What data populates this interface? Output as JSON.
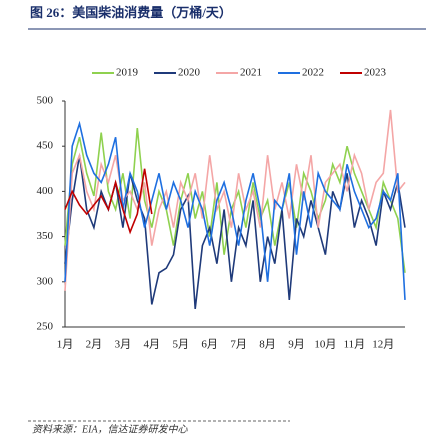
{
  "chart_data": {
    "type": "line",
    "title": "图 26：美国柴油消费量（万桶/天）",
    "source": "资料来源：EIA，信达证券研发中心",
    "categories": [
      "1月",
      null,
      null,
      null,
      "2月",
      null,
      null,
      null,
      "3月",
      null,
      null,
      null,
      "4月",
      null,
      null,
      null,
      "5月",
      null,
      null,
      null,
      "6月",
      null,
      null,
      null,
      "7月",
      null,
      null,
      null,
      "8月",
      null,
      null,
      null,
      "9月",
      null,
      null,
      null,
      "10月",
      null,
      null,
      null,
      "11月",
      null,
      null,
      null,
      "12月",
      null,
      null,
      null
    ],
    "ylim": [
      250,
      500
    ],
    "yticks": [
      250,
      300,
      350,
      400,
      450,
      500
    ],
    "series": [
      {
        "name": "2019",
        "color": "#8fd14f",
        "values": [
          340,
          430,
          460,
          420,
          395,
          465,
          400,
          380,
          420,
          370,
          470,
          390,
          360,
          400,
          380,
          340,
          390,
          420,
          370,
          400,
          350,
          410,
          330,
          380,
          400,
          360,
          410,
          370,
          390,
          340,
          380,
          410,
          360,
          420,
          400,
          370,
          390,
          430,
          410,
          450,
          420,
          400,
          380,
          360,
          410,
          390,
          370,
          310
        ]
      },
      {
        "name": "2020",
        "color": "#1f3a7a",
        "values": [
          320,
          390,
          440,
          380,
          360,
          400,
          380,
          410,
          360,
          420,
          390,
          370,
          275,
          310,
          315,
          330,
          380,
          395,
          270,
          340,
          360,
          320,
          380,
          300,
          360,
          340,
          390,
          300,
          350,
          320,
          380,
          280,
          370,
          350,
          390,
          360,
          330,
          400,
          380,
          420,
          360,
          390,
          370,
          340,
          400,
          380,
          410,
          360
        ]
      },
      {
        "name": "2021",
        "color": "#f4a6a6",
        "values": [
          290,
          420,
          440,
          400,
          380,
          430,
          410,
          440,
          390,
          400,
          380,
          410,
          340,
          380,
          400,
          360,
          410,
          390,
          420,
          370,
          440,
          380,
          400,
          360,
          420,
          380,
          400,
          360,
          440,
          380,
          410,
          370,
          430,
          390,
          440,
          360,
          410,
          420,
          430,
          400,
          440,
          420,
          380,
          410,
          420,
          490,
          400,
          410
        ]
      },
      {
        "name": "2022",
        "color": "#1e6fe0",
        "values": [
          300,
          450,
          475,
          440,
          420,
          410,
          430,
          460,
          380,
          420,
          400,
          360,
          390,
          420,
          380,
          410,
          390,
          360,
          400,
          380,
          340,
          390,
          410,
          380,
          340,
          390,
          420,
          380,
          300,
          390,
          380,
          420,
          330,
          400,
          360,
          420,
          400,
          390,
          380,
          430,
          400,
          380,
          360,
          370,
          400,
          390,
          420,
          280
        ]
      },
      {
        "name": "2023",
        "color": "#c00000",
        "values": [
          380,
          400,
          385,
          375,
          385,
          395,
          380,
          410,
          380,
          355,
          375,
          425,
          375,
          null,
          null,
          null,
          null,
          null,
          null,
          null,
          null,
          null,
          null,
          null,
          null,
          null,
          null,
          null,
          null,
          null,
          null,
          null,
          null,
          null,
          null,
          null,
          null,
          null,
          null,
          null,
          null,
          null,
          null,
          null,
          null,
          null,
          null,
          null
        ]
      }
    ]
  }
}
